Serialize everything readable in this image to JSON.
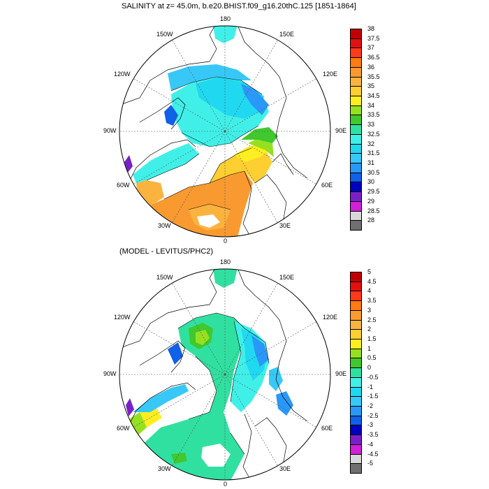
{
  "panels": [
    {
      "title": "SALINITY at z=  45.0m, b.e20.BHIST.f09_g16.20thC.125 [1851-1864]",
      "lon_labels": {
        "top": "180",
        "tl": "150W",
        "tr": "150E",
        "l1": "120W",
        "r1": "120E",
        "l2": "90W",
        "r2": "90E",
        "l3": "60W",
        "r3": "60E",
        "bl": "30W",
        "br": "30E",
        "bottom": "0"
      },
      "colorbar": {
        "labels": [
          "38",
          "37.5",
          "37",
          "36.5",
          "36",
          "35.5",
          "35",
          "34.5",
          "34",
          "33.5",
          "33",
          "32.5",
          "32",
          "31.5",
          "31",
          "30.5",
          "30",
          "29.5",
          "29",
          "28.5",
          "28"
        ],
        "colors": [
          "#c00000",
          "#e41010",
          "#ff3a1a",
          "#ff7a10",
          "#f89a30",
          "#fbb340",
          "#fdcf30",
          "#ffee20",
          "#96e020",
          "#40c82e",
          "#30e0a0",
          "#40f0e8",
          "#20d8f0",
          "#38c8f8",
          "#2a98f8",
          "#1060e8",
          "#0000c0",
          "#7a20c8",
          "#d020d8",
          "#d8d8d8",
          "#707070"
        ]
      }
    },
    {
      "title": "(MODEL - LEVITUS/PHC2)",
      "lon_labels": {
        "top": "180",
        "tl": "150W",
        "tr": "150E",
        "l1": "120W",
        "r1": "120E",
        "l2": "90W",
        "r2": "90E",
        "l3": "60W",
        "r3": "60E",
        "bl": "30W",
        "br": "30E",
        "bottom": "0"
      },
      "colorbar": {
        "labels": [
          "5",
          "4.5",
          "4",
          "3.5",
          "3",
          "2.5",
          "2",
          "1.5",
          "1",
          "0.5",
          "0",
          "-0.5",
          "-1",
          "-1.5",
          "-2",
          "-2.5",
          "-3",
          "-3.5",
          "-4",
          "-4.5",
          "-5"
        ],
        "colors": [
          "#c00000",
          "#e41010",
          "#ff3a1a",
          "#ff7a10",
          "#f89a30",
          "#fbb340",
          "#fdcf30",
          "#ffee20",
          "#96e020",
          "#40c82e",
          "#30e0a0",
          "#40f0e8",
          "#20d8f0",
          "#38c8f8",
          "#2a98f8",
          "#1060e8",
          "#0000c0",
          "#7a20c8",
          "#d020d8",
          "#d8d8d8",
          "#707070"
        ]
      }
    }
  ]
}
